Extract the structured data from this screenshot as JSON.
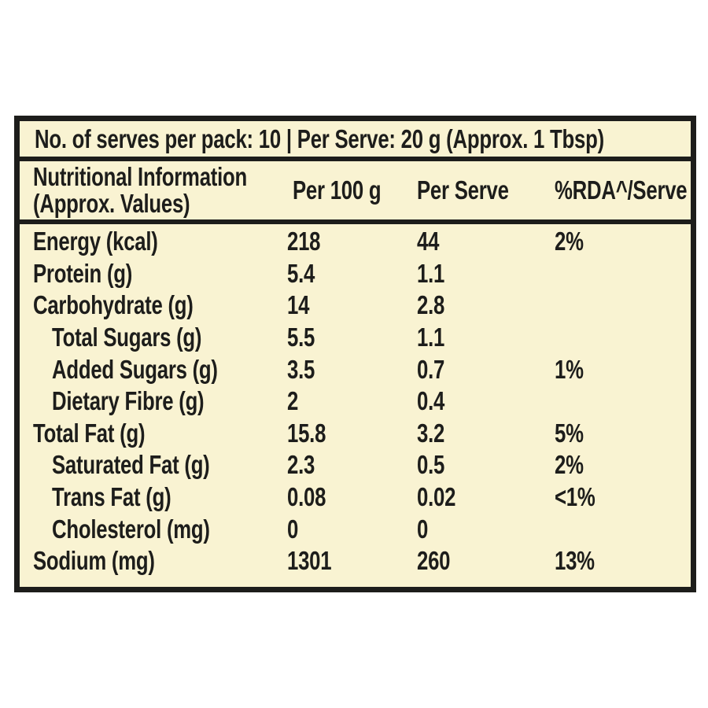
{
  "label": {
    "serves_line": "No. of serves per pack: 10 | Per Serve: 20 g (Approx. 1 Tbsp)",
    "columns": {
      "name_line1": "Nutritional Information",
      "name_line2": "(Approx. Values)",
      "per_100g": "Per 100 g",
      "per_serve": "Per Serve",
      "rda": "%RDA^/Serve"
    },
    "rows": [
      {
        "name": "Energy (kcal)",
        "per_100g": "218",
        "per_serve": "44",
        "rda": "2%",
        "indent": false
      },
      {
        "name": "Protein (g)",
        "per_100g": "5.4",
        "per_serve": "1.1",
        "rda": "",
        "indent": false
      },
      {
        "name": "Carbohydrate (g)",
        "per_100g": "14",
        "per_serve": "2.8",
        "rda": "",
        "indent": false
      },
      {
        "name": "Total Sugars (g)",
        "per_100g": "5.5",
        "per_serve": "1.1",
        "rda": "",
        "indent": true
      },
      {
        "name": "Added Sugars (g)",
        "per_100g": "3.5",
        "per_serve": "0.7",
        "rda": "1%",
        "indent": true
      },
      {
        "name": "Dietary Fibre (g)",
        "per_100g": "2",
        "per_serve": "0.4",
        "rda": "",
        "indent": true
      },
      {
        "name": "Total Fat (g)",
        "per_100g": "15.8",
        "per_serve": "3.2",
        "rda": "5%",
        "indent": false
      },
      {
        "name": "Saturated Fat (g)",
        "per_100g": "2.3",
        "per_serve": "0.5",
        "rda": "2%",
        "indent": true
      },
      {
        "name": "Trans Fat (g)",
        "per_100g": "0.08",
        "per_serve": "0.02",
        "rda": "<1%",
        "indent": true
      },
      {
        "name": "Cholesterol (mg)",
        "per_100g": "0",
        "per_serve": "0",
        "rda": "",
        "indent": true
      },
      {
        "name": "Sodium (mg)",
        "per_100g": "1301",
        "per_serve": "260",
        "rda": "13%",
        "indent": false
      }
    ],
    "colors": {
      "page_background": "#ffffff",
      "label_background": "#f9f3d2",
      "border": "#1d1d1b",
      "text": "#1d1d1b"
    }
  }
}
